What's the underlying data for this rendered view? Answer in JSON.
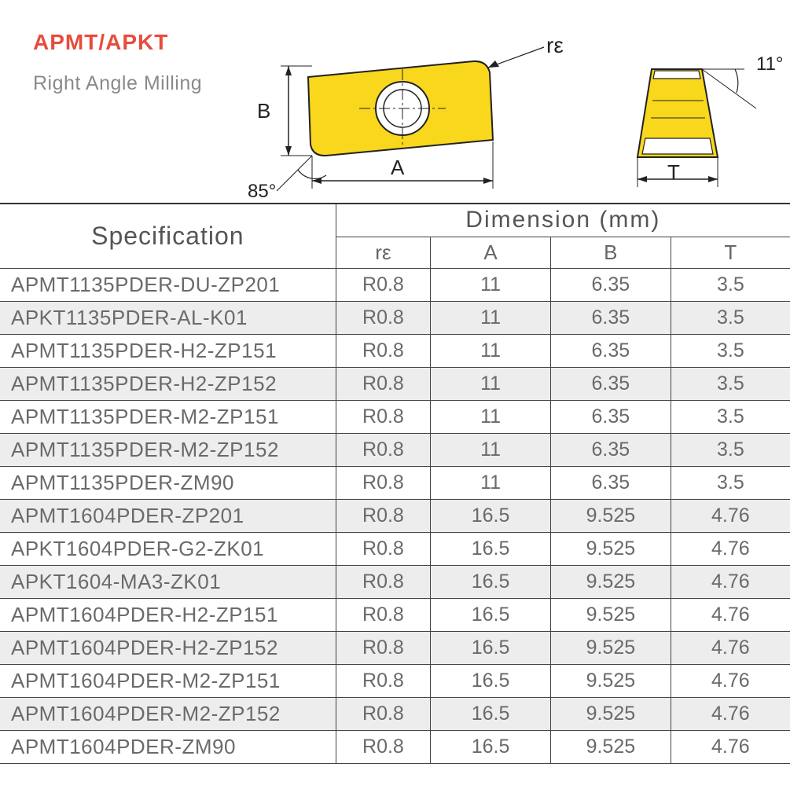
{
  "header": {
    "title": "APMT/APKT",
    "subtitle": "Right Angle Milling"
  },
  "diagram": {
    "main_view": {
      "label_B": "B",
      "label_A": "A",
      "label_re": "rε",
      "angle_label": "85°",
      "fill_color": "#f9d71c",
      "stroke_color": "#222222"
    },
    "side_view": {
      "label_T": "T",
      "angle_label": "11°",
      "fill_color": "#f9d71c",
      "stroke_color": "#222222"
    }
  },
  "table": {
    "spec_header": "Specification",
    "dim_header": "Dimension  (mm)",
    "sub_headers": [
      "rε",
      "A",
      "B",
      "T"
    ],
    "col_widths_pct": [
      42.5,
      12.0,
      15.2,
      15.2,
      15.1
    ],
    "header_bg": "#ffffff",
    "row_odd_bg": "#ffffff",
    "row_even_bg": "#ededed",
    "border_color": "#444444",
    "text_color": "#6a6a6a",
    "font_size_header": 30,
    "font_size_cell": 26,
    "rows": [
      {
        "spec": "APMT1135PDER-DU-ZP201",
        "re": "R0.8",
        "A": "11",
        "B": "6.35",
        "T": "3.5"
      },
      {
        "spec": "APKT1135PDER-AL-K01",
        "re": "R0.8",
        "A": "11",
        "B": "6.35",
        "T": "3.5"
      },
      {
        "spec": "APMT1135PDER-H2-ZP151",
        "re": "R0.8",
        "A": "11",
        "B": "6.35",
        "T": "3.5"
      },
      {
        "spec": "APMT1135PDER-H2-ZP152",
        "re": "R0.8",
        "A": "11",
        "B": "6.35",
        "T": "3.5"
      },
      {
        "spec": "APMT1135PDER-M2-ZP151",
        "re": "R0.8",
        "A": "11",
        "B": "6.35",
        "T": "3.5"
      },
      {
        "spec": "APMT1135PDER-M2-ZP152",
        "re": "R0.8",
        "A": "11",
        "B": "6.35",
        "T": "3.5"
      },
      {
        "spec": "APMT1135PDER-ZM90",
        "re": "R0.8",
        "A": "11",
        "B": "6.35",
        "T": "3.5"
      },
      {
        "spec": "APMT1604PDER-ZP201",
        "re": "R0.8",
        "A": "16.5",
        "B": "9.525",
        "T": "4.76"
      },
      {
        "spec": "APKT1604PDER-G2-ZK01",
        "re": "R0.8",
        "A": "16.5",
        "B": "9.525",
        "T": "4.76"
      },
      {
        "spec": "APKT1604-MA3-ZK01",
        "re": "R0.8",
        "A": "16.5",
        "B": "9.525",
        "T": "4.76"
      },
      {
        "spec": "APMT1604PDER-H2-ZP151",
        "re": "R0.8",
        "A": "16.5",
        "B": "9.525",
        "T": "4.76"
      },
      {
        "spec": "APMT1604PDER-H2-ZP152",
        "re": "R0.8",
        "A": "16.5",
        "B": "9.525",
        "T": "4.76"
      },
      {
        "spec": "APMT1604PDER-M2-ZP151",
        "re": "R0.8",
        "A": "16.5",
        "B": "9.525",
        "T": "4.76"
      },
      {
        "spec": "APMT1604PDER-M2-ZP152",
        "re": "R0.8",
        "A": "16.5",
        "B": "9.525",
        "T": "4.76"
      },
      {
        "spec": "APMT1604PDER-ZM90",
        "re": "R0.8",
        "A": "16.5",
        "B": "9.525",
        "T": "4.76"
      }
    ]
  }
}
